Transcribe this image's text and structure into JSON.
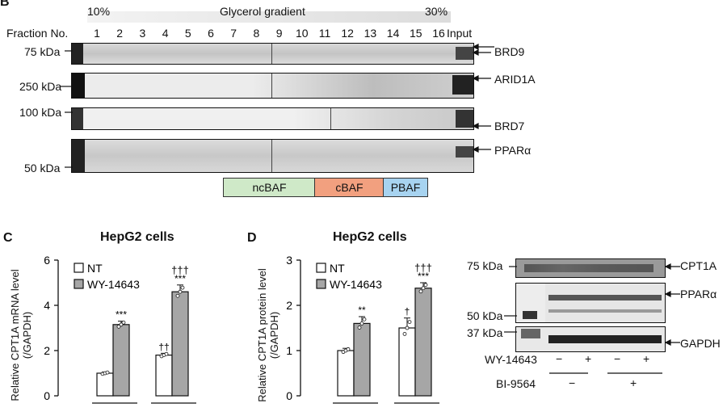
{
  "panel_b": {
    "letter": "B",
    "grad_low": "10%",
    "grad_title": "Glycerol gradient",
    "grad_high": "30%",
    "fraction_header": "Fraction No.",
    "fractions": [
      "1",
      "2",
      "3",
      "4",
      "5",
      "6",
      "7",
      "8",
      "9",
      "10",
      "11",
      "12",
      "13",
      "14",
      "15",
      "16"
    ],
    "input_label": "Input",
    "blots": [
      {
        "marker": "75 kDa",
        "protein": "BRD9"
      },
      {
        "marker": "250 kDa",
        "protein": "ARID1A"
      },
      {
        "marker": "100 kDa",
        "protein": "BRD7"
      },
      {
        "marker": "50 kDa",
        "protein": "PPARα"
      }
    ],
    "complexes": [
      {
        "name": "ncBAF",
        "color": "#cfe9c8"
      },
      {
        "name": "cBAF",
        "color": "#f2a07f"
      },
      {
        "name": "PBAF",
        "color": "#a7d3f0"
      }
    ]
  },
  "panel_c": {
    "letter": "C",
    "title": "HepG2 cells",
    "ylabel_line1": "Relative CPT1A mRNA level",
    "ylabel_line2": "(/GAPDH)",
    "legend": [
      "NT",
      "WY-14643"
    ],
    "sig_wy_nt": "***",
    "sig_bi": "††",
    "sig_wy_bi_top": "†††",
    "sig_wy_bi": "***"
  },
  "panel_d": {
    "letter": "D",
    "title": "HepG2 cells",
    "ylabel_line1": "Relative CPT1A protein level",
    "ylabel_line2": "(/GAPDH)",
    "legend": [
      "NT",
      "WY-14643"
    ],
    "sig_wy_nt": "**",
    "sig_bi": "†",
    "sig_wy_bi_top": "†††",
    "sig_wy_bi": "***"
  },
  "panel_d_blot": {
    "rows": [
      {
        "marker": "75 kDa",
        "protein": "CPT1A"
      },
      {
        "marker": "",
        "protein": "PPARα"
      },
      {
        "marker": "50 kDa",
        "protein": ""
      },
      {
        "marker": "37 kDa",
        "protein": "GAPDH"
      }
    ],
    "wy_label": "WY-14643",
    "bi_label": "BI-9564",
    "wy_signs": [
      "−",
      "+",
      "−",
      "+"
    ],
    "bi_signs": [
      "−",
      "+"
    ]
  },
  "chart_data": [
    {
      "type": "bar",
      "title": "HepG2 cells",
      "ylabel": "Relative CPT1A mRNA level (/GAPDH)",
      "ylim": [
        0,
        6
      ],
      "yticks": [
        0,
        2,
        4,
        6
      ],
      "groups": [
        "",
        ""
      ],
      "series": [
        {
          "name": "NT",
          "values": [
            1.0,
            1.8
          ],
          "color": "#ffffff"
        },
        {
          "name": "WY-14643",
          "values": [
            3.15,
            4.6
          ],
          "color": "#a6a6a6"
        }
      ],
      "errors": [
        [
          0.05,
          0.08
        ],
        [
          0.15,
          0.3
        ]
      ]
    },
    {
      "type": "bar",
      "title": "HepG2 cells",
      "ylabel": "Relative CPT1A protein level (/GAPDH)",
      "ylim": [
        0,
        3
      ],
      "yticks": [
        0,
        1,
        2,
        3
      ],
      "groups": [
        "",
        ""
      ],
      "series": [
        {
          "name": "NT",
          "values": [
            1.0,
            1.5
          ],
          "color": "#ffffff"
        },
        {
          "name": "WY-14643",
          "values": [
            1.6,
            2.38
          ],
          "color": "#a6a6a6"
        }
      ],
      "errors": [
        [
          0.05,
          0.22
        ],
        [
          0.15,
          0.12
        ]
      ]
    }
  ]
}
